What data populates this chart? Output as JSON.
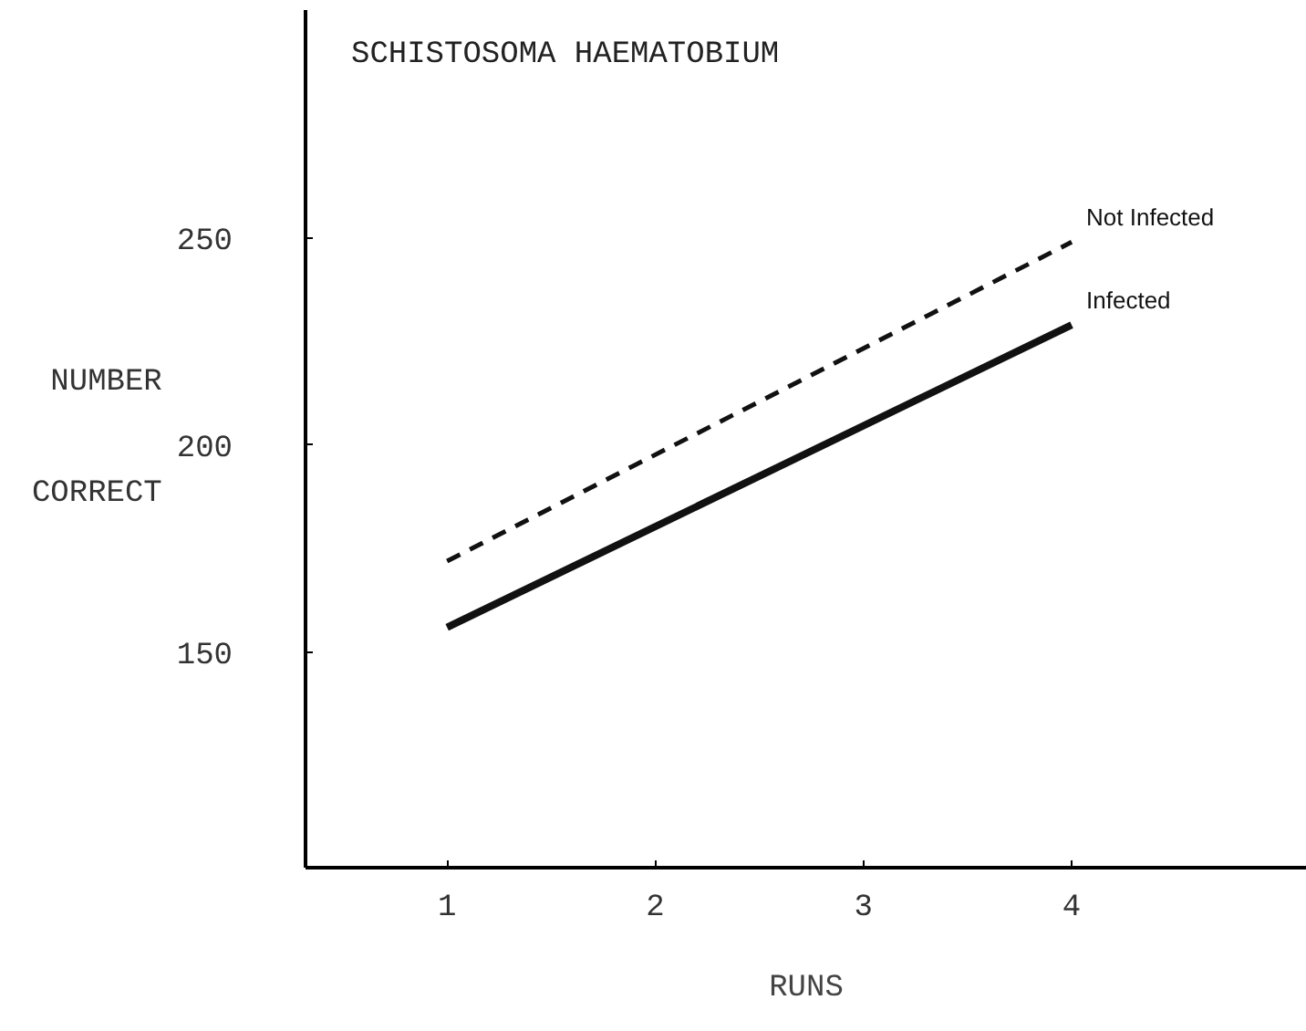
{
  "chart_data": {
    "type": "line",
    "title": "SCHISTOSOMA HAEMATOBIUM",
    "xlabel": "RUNS",
    "ylabel": "NUMBER\nCORRECT",
    "x": [
      1,
      4
    ],
    "xlim": [
      0.32,
      5.13
    ],
    "ylim": [
      98,
      305
    ],
    "xticks": [
      1,
      2,
      3,
      4
    ],
    "yticks": [
      150,
      200,
      250
    ],
    "grid": false,
    "series": [
      {
        "name": "Not Infected",
        "color": "#111111",
        "values": [
          172,
          249
        ],
        "line_style": "dashed"
      },
      {
        "name": "Infected",
        "color": "#111111",
        "values": [
          156,
          229
        ],
        "line_style": "solid"
      }
    ]
  }
}
